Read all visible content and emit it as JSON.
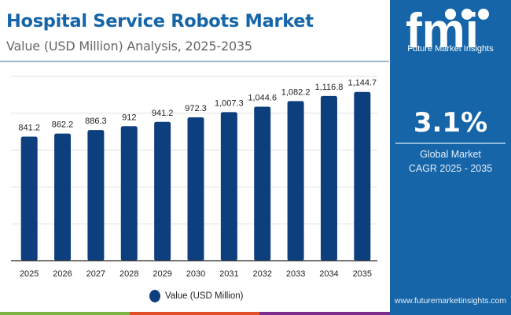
{
  "header": {
    "title": "Hospital Service Robots Market",
    "subtitle": "Value (USD Million) Analysis, 2025-2035"
  },
  "sidebar": {
    "logo_letters": "fmi",
    "logo_text": "Future Market Insights",
    "cagr_value": "3.1%",
    "cagr_label_1": "Global Market",
    "cagr_label_2": "CAGR 2025 - 2035",
    "url": "www.futuremarketinsights.com",
    "background_color": "#1565a8"
  },
  "legend": {
    "label": "Value (USD Million)",
    "color": "#0d3f7e"
  },
  "bottom_strip_colors": [
    "#7cb342",
    "#e0502a",
    "#7b2d8e"
  ],
  "chart_data": {
    "type": "bar",
    "title": "Hospital Service Robots Market",
    "subtitle": "Value (USD Million) Analysis, 2025-2035",
    "xlabel": "",
    "ylabel": "",
    "categories": [
      "2025",
      "2026",
      "2027",
      "2028",
      "2029",
      "2030",
      "2031",
      "2032",
      "2033",
      "2034",
      "2035"
    ],
    "series": [
      {
        "name": "Value (USD Million)",
        "color": "#0d3f7e",
        "values": [
          841.2,
          862.2,
          886.3,
          912,
          941.2,
          972.3,
          1007.3,
          1044.6,
          1082.2,
          1116.8,
          1144.7
        ],
        "labels": [
          "841.2",
          "862.2",
          "886.3",
          "912",
          "941.2",
          "972.3",
          "1,007.3",
          "1,044.6",
          "1,082.2",
          "1,116.8",
          "1,144.7"
        ]
      }
    ],
    "ylim": [
      0,
      1250
    ],
    "gridlines": [
      250,
      500,
      750,
      1000,
      1250
    ],
    "grid": true,
    "y_axis_labels_visible": false,
    "legend_position": "bottom-center"
  }
}
